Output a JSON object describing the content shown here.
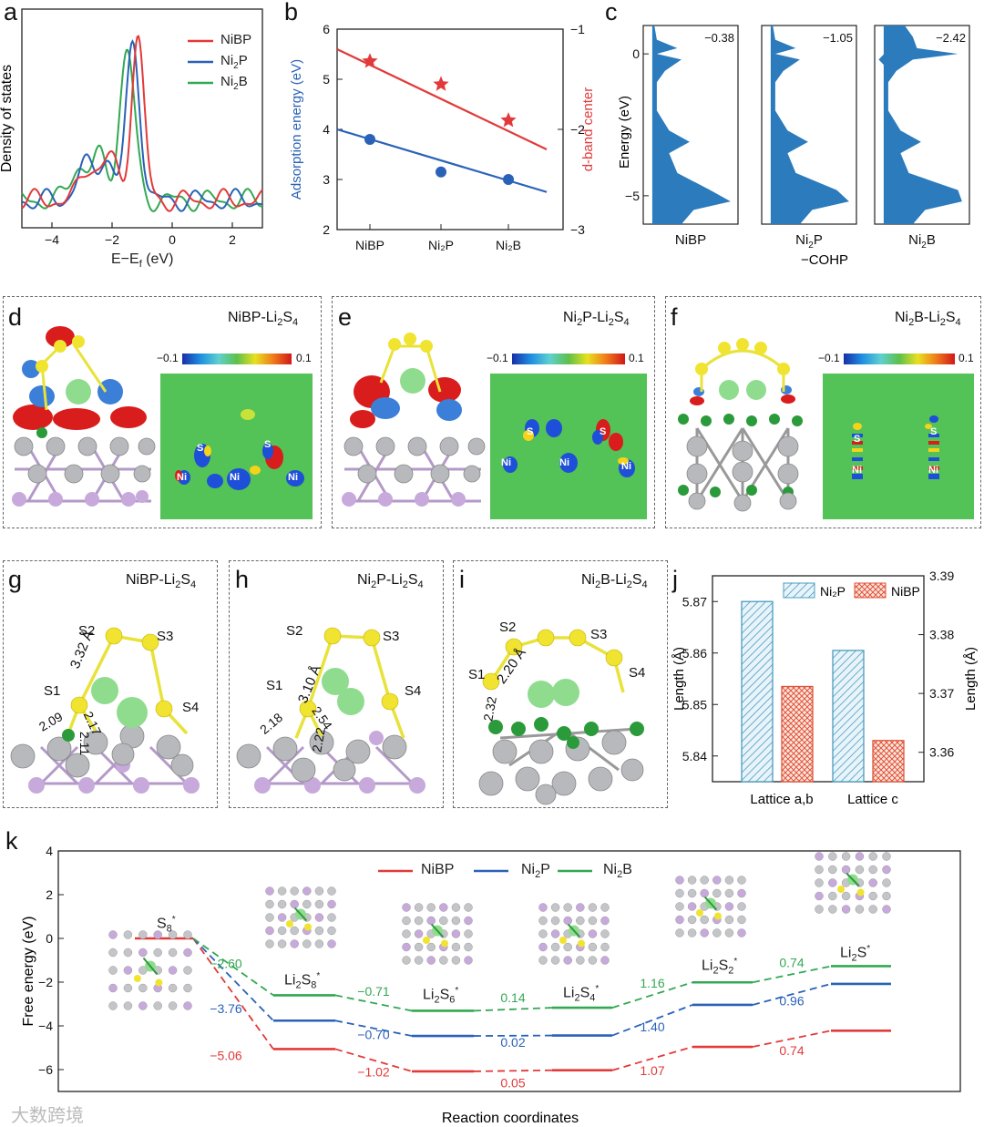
{
  "panels": {
    "a": {
      "label": "a",
      "ylabel": "Density of states",
      "xlabel": "E−E",
      "xlabel_sub": "f",
      "xlabel_unit": " (eV)",
      "legend": [
        {
          "base": "NiBP",
          "sub": "",
          "tail": "",
          "color": "#e23a3a"
        },
        {
          "base": "Ni",
          "sub": "2",
          "tail": "P",
          "color": "#2a62b8"
        },
        {
          "base": "Ni",
          "sub": "2",
          "tail": "B",
          "color": "#33a852"
        }
      ]
    },
    "b": {
      "label": "b"
    },
    "c": {
      "label": "c",
      "ylabel": "Energy (eV)",
      "xlabel": "−COHP",
      "subplots": [
        {
          "name_base": "NiBP",
          "name_sub": "",
          "name_tail": "",
          "icohp": "−0.38"
        },
        {
          "name_base": "Ni",
          "name_sub": "2",
          "name_tail": "P",
          "icohp": "−1.05"
        },
        {
          "name_base": "Ni",
          "name_sub": "2",
          "name_tail": "B",
          "icohp": "−2.42"
        }
      ],
      "yticks": [
        "0",
        "−5"
      ]
    },
    "d": {
      "label": "d",
      "title": "NiBP-Li",
      "t2": "2",
      "t3": "S",
      "t4": "4"
    },
    "e": {
      "label": "e",
      "title": "Ni",
      "t1s": "2",
      "title2": "P-Li",
      "t2": "2",
      "t3": "S",
      "t4": "4"
    },
    "f": {
      "label": "f",
      "title": "Ni",
      "t1s": "2",
      "title2": "B-Li",
      "t2": "2",
      "t3": "S",
      "t4": "4"
    },
    "g": {
      "label": "g",
      "title": "NiBP-Li",
      "t2": "2",
      "t3": "S",
      "t4": "4",
      "bonds": [
        "3.32 Å",
        "2.09",
        "2.17",
        "2.11"
      ],
      "atoms": [
        "S1",
        "S2",
        "S3",
        "S4"
      ]
    },
    "h": {
      "label": "h",
      "title": "Ni",
      "t1s": "2",
      "title2": "P-Li",
      "t2": "2",
      "t3": "S",
      "t4": "4",
      "bonds": [
        "3.10 Å",
        "2.18",
        "2.54",
        "2.22"
      ],
      "atoms": [
        "S1",
        "S2",
        "S3",
        "S4"
      ]
    },
    "i": {
      "label": "i",
      "title": "Ni",
      "t1s": "2",
      "title2": "B-Li",
      "t2": "2",
      "t3": "S",
      "t4": "4",
      "bonds": [
        "2.20 Å",
        "2.32"
      ],
      "atoms": [
        "S1",
        "S2",
        "S3",
        "S4"
      ]
    },
    "j": {
      "label": "j"
    },
    "k": {
      "label": "k"
    }
  },
  "colorbar": {
    "min": "−0.1",
    "max": "0.1"
  },
  "heatmap_atoms": {
    "s": "S",
    "ni": "Ni"
  },
  "watermark": "大数跨境",
  "colors": {
    "red": "#e23a3a",
    "blue": "#2a62b8",
    "green": "#33a852",
    "star": "#e02c2c",
    "cohp": "#2b7bbd"
  },
  "chart_data": [
    {
      "id": "b",
      "type": "scatter",
      "categories": [
        "NiBP",
        "Ni₂P",
        "Ni₂B"
      ],
      "ylabel_left": "Adsorption energy (eV)",
      "ylabel_right": "d-band center",
      "ylim_left": [
        2,
        6
      ],
      "ylim_right": [
        -3,
        -1
      ],
      "yticks_left": [
        2,
        3,
        4,
        5,
        6
      ],
      "yticks_right": [
        -3,
        -2,
        -1
      ],
      "series": [
        {
          "name": "Adsorption energy",
          "axis": "left",
          "marker": "circle",
          "color": "#2a62b8",
          "values": [
            3.8,
            3.15,
            3.0
          ],
          "fit": [
            4.0,
            2.75
          ]
        },
        {
          "name": "d-band center",
          "axis": "right",
          "marker": "star",
          "color": "#e23a3a",
          "values": [
            -1.32,
            -1.55,
            -1.91
          ],
          "fit": [
            -1.2,
            -2.2
          ]
        }
      ]
    },
    {
      "id": "j",
      "type": "bar",
      "categories": [
        "Lattice a,b",
        "Lattice c"
      ],
      "ylabel_left": "Length (Å)",
      "ylabel_right": "Length (Å)",
      "ylim_left": [
        5.835,
        5.875
      ],
      "ylim_right": [
        3.355,
        3.39
      ],
      "yticks_left": [
        5.84,
        5.85,
        5.86,
        5.87
      ],
      "yticks_right": [
        3.36,
        3.37,
        3.38,
        3.39
      ],
      "legend": [
        "Ni₂P",
        "NiBP"
      ],
      "series": [
        {
          "name": "Ni₂P",
          "axis": "left",
          "values": [
            5.87,
            5.8605
          ],
          "pattern": "hatch-blue"
        },
        {
          "name": "NiBP",
          "axis": "left",
          "values": [
            5.8535,
            5.843
          ],
          "pattern": "cross-red"
        }
      ]
    },
    {
      "id": "k",
      "type": "line",
      "title": "",
      "xlabel": "Reaction coordinates",
      "ylabel": "Free energy (eV)",
      "ylim": [
        -7,
        4
      ],
      "yticks": [
        4,
        2,
        0,
        -2,
        -4,
        -6
      ],
      "states": [
        "S8*",
        "Li2S8*",
        "Li2S6*",
        "Li2S4*",
        "Li2S2*",
        "Li2S*"
      ],
      "state_labels": [
        {
          "base": "S",
          "sub": "8",
          "tail": "",
          "sup": "*"
        },
        {
          "base": "Li",
          "sub": "2",
          "tail": "S",
          "sub2": "8",
          "sup": "*"
        },
        {
          "base": "Li",
          "sub": "2",
          "tail": "S",
          "sub2": "6",
          "sup": "*"
        },
        {
          "base": "Li",
          "sub": "2",
          "tail": "S",
          "sub2": "4",
          "sup": "*"
        },
        {
          "base": "Li",
          "sub": "2",
          "tail": "S",
          "sub2": "2",
          "sup": "*"
        },
        {
          "base": "Li",
          "sub": "2",
          "tail": "S",
          "sub2": "",
          "sup": "*"
        }
      ],
      "legend": [
        {
          "base": "NiBP",
          "sub": "",
          "tail": ""
        },
        {
          "base": "Ni",
          "sub": "2",
          "tail": "P"
        },
        {
          "base": "Ni",
          "sub": "2",
          "tail": "B"
        }
      ],
      "series": [
        {
          "name": "NiBP",
          "color": "#e23a3a",
          "values": [
            0,
            -5.06,
            -6.08,
            -6.03,
            -4.96,
            -4.22
          ],
          "steps": [
            "-5.06",
            "-1.02",
            "0.05",
            "1.07",
            "0.74"
          ]
        },
        {
          "name": "Ni2P",
          "color": "#2a62b8",
          "values": [
            0,
            -3.76,
            -4.46,
            -4.44,
            -3.04,
            -2.08
          ],
          "steps": [
            "-3.76",
            "-0.70",
            "0.02",
            "1.40",
            "0.96"
          ]
        },
        {
          "name": "Ni2B",
          "color": "#33a852",
          "values": [
            0,
            -2.6,
            -3.31,
            -3.17,
            -2.01,
            -1.27
          ],
          "steps": [
            "-2.60",
            "-0.71",
            "0.14",
            "1.16",
            "0.74"
          ]
        }
      ]
    }
  ]
}
